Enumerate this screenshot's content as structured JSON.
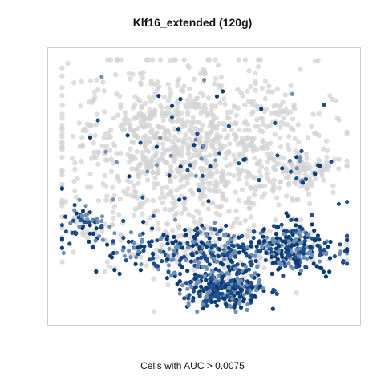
{
  "chart_data": {
    "type": "scatter",
    "title": "Klf16_extended (120g)",
    "xlabel": "Cells with AUC > 0.0075",
    "ylabel": "",
    "grid": false,
    "legend": "none",
    "colors": {
      "inactive": "#d3d3d3",
      "active_light": "#6f8fb5",
      "active": "#1f4e8c",
      "active_dark": "#0d3b73"
    },
    "regions": [
      {
        "name": "background",
        "cx": 0.45,
        "cy": 0.64,
        "rx": 0.38,
        "ry": 0.3,
        "n": 1100,
        "active_frac": 0.05
      },
      {
        "name": "background-right",
        "cx": 0.83,
        "cy": 0.56,
        "rx": 0.1,
        "ry": 0.06,
        "n": 90,
        "active_frac": 0.12
      },
      {
        "name": "lower-band",
        "cx": 0.55,
        "cy": 0.26,
        "rx": 0.36,
        "ry": 0.08,
        "n": 520,
        "active_frac": 0.8
      },
      {
        "name": "bottom-cluster",
        "cx": 0.56,
        "cy": 0.11,
        "rx": 0.13,
        "ry": 0.07,
        "n": 320,
        "active_frac": 0.95
      },
      {
        "name": "right-cluster",
        "cx": 0.8,
        "cy": 0.27,
        "rx": 0.09,
        "ry": 0.08,
        "n": 160,
        "active_frac": 0.85
      },
      {
        "name": "left-edge",
        "cx": 0.1,
        "cy": 0.36,
        "rx": 0.06,
        "ry": 0.06,
        "n": 60,
        "active_frac": 0.75
      }
    ]
  }
}
